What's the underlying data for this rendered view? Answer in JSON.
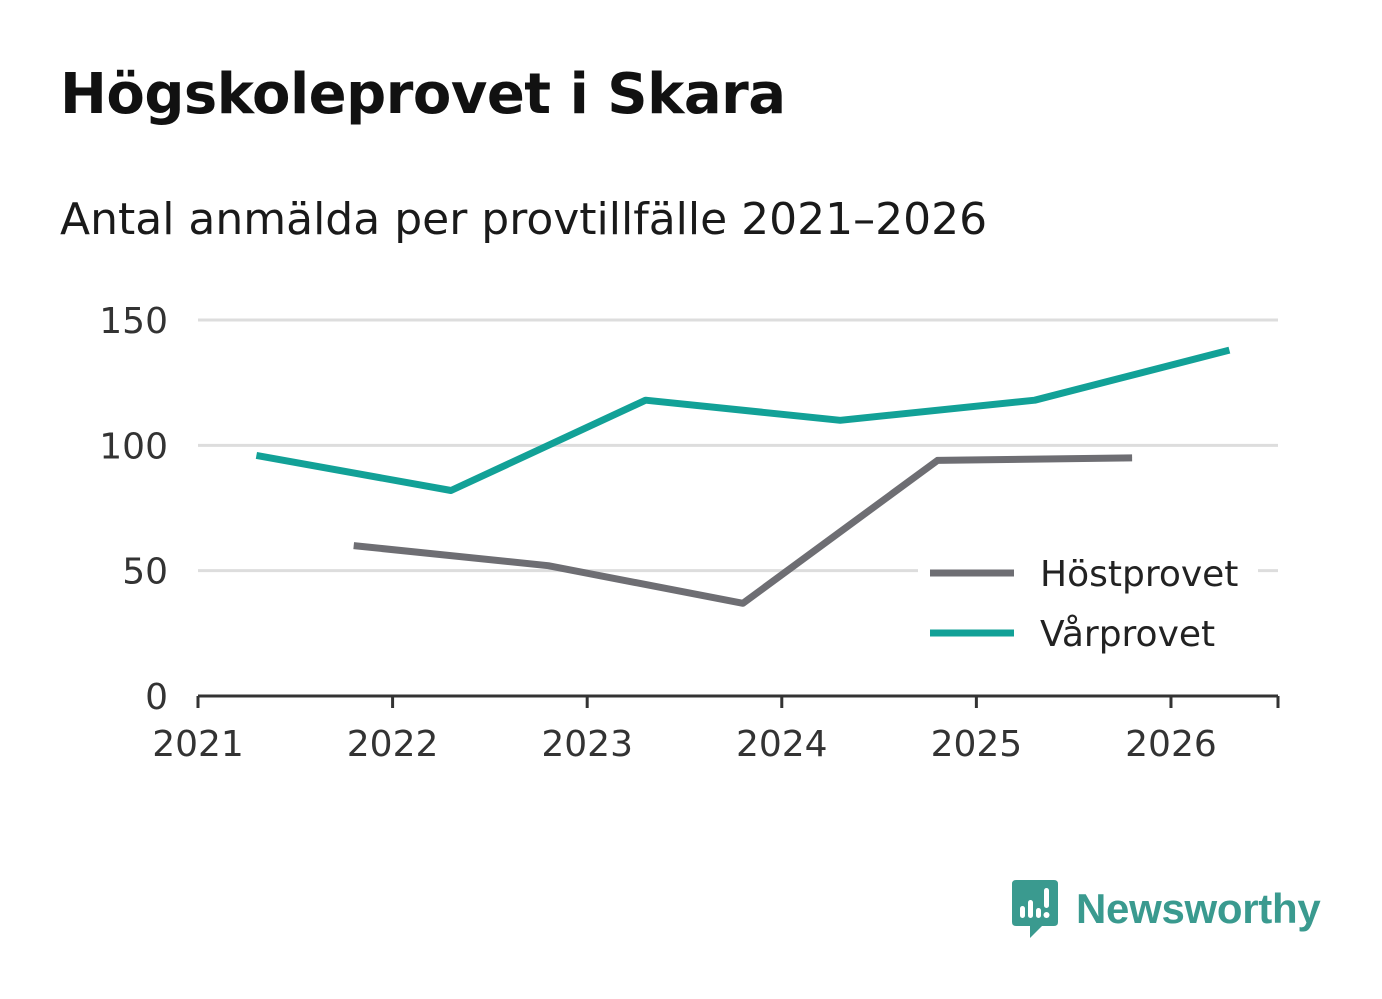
{
  "title": "Högskoleprovet i Skara",
  "subtitle": "Antal anmälda per provtillfälle 2021–2026",
  "colors": {
    "hostprovet": "#6e6e73",
    "varprovet": "#12a197",
    "grid": "#dddddd",
    "axis": "#333333",
    "brand": "#3a9a8f"
  },
  "brand": {
    "name": "Newsworthy",
    "icon": "newsworthy-logo-icon"
  },
  "chart_data": {
    "type": "line",
    "title": "Högskoleprovet i Skara",
    "subtitle": "Antal anmälda per provtillfälle 2021–2026",
    "xlabel": "",
    "ylabel": "",
    "x_ticks": [
      "2021",
      "2022",
      "2023",
      "2024",
      "2025",
      "2026"
    ],
    "y_ticks": [
      0,
      50,
      100,
      150
    ],
    "xlim": [
      2021,
      2026.55
    ],
    "ylim": [
      0,
      150
    ],
    "grid": "horizontal",
    "legend": "bottom-right",
    "series": [
      {
        "name": "Höstprovet",
        "color": "#6e6e73",
        "points": [
          {
            "x": 2021.8,
            "y": 60
          },
          {
            "x": 2022.8,
            "y": 52
          },
          {
            "x": 2023.8,
            "y": 37
          },
          {
            "x": 2024.8,
            "y": 94
          },
          {
            "x": 2025.8,
            "y": 95
          }
        ]
      },
      {
        "name": "Vårprovet",
        "color": "#12a197",
        "points": [
          {
            "x": 2021.3,
            "y": 96
          },
          {
            "x": 2022.3,
            "y": 82
          },
          {
            "x": 2023.3,
            "y": 118
          },
          {
            "x": 2024.3,
            "y": 110
          },
          {
            "x": 2025.3,
            "y": 118
          },
          {
            "x": 2026.3,
            "y": 138
          }
        ]
      }
    ]
  }
}
